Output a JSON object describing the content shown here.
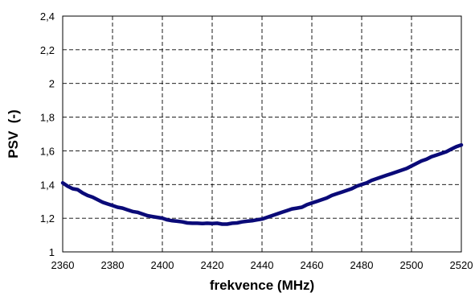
{
  "chart_data": {
    "type": "line",
    "title": "",
    "xlabel": "frekvence (MHz)",
    "ylabel": "PSV  (-)",
    "xlim": [
      2360,
      2520
    ],
    "ylim": [
      1,
      2.4
    ],
    "xticks": [
      2360,
      2380,
      2400,
      2420,
      2440,
      2460,
      2480,
      2500,
      2520
    ],
    "xtick_labels": [
      "2360",
      "2380",
      "2400",
      "2420",
      "2440",
      "2460",
      "2480",
      "2500",
      "2520"
    ],
    "yticks": [
      1,
      1.2,
      1.4,
      1.6,
      1.8,
      2,
      2.2,
      2.4
    ],
    "ytick_labels": [
      "1",
      "1,2",
      "1,4",
      "1,6",
      "1,8",
      "2",
      "2,2",
      "2,4"
    ],
    "grid": true,
    "legend": "none",
    "series": [
      {
        "color": "#0a0a78",
        "x": [
          2360,
          2362,
          2364,
          2366,
          2368,
          2370,
          2372,
          2374,
          2376,
          2378,
          2380,
          2382,
          2384,
          2386,
          2388,
          2390,
          2392,
          2394,
          2396,
          2398,
          2400,
          2402,
          2404,
          2406,
          2408,
          2410,
          2412,
          2414,
          2416,
          2418,
          2420,
          2422,
          2424,
          2426,
          2428,
          2430,
          2432,
          2434,
          2436,
          2438,
          2440,
          2442,
          2444,
          2446,
          2448,
          2450,
          2452,
          2454,
          2456,
          2458,
          2460,
          2462,
          2464,
          2466,
          2468,
          2470,
          2472,
          2474,
          2476,
          2478,
          2480,
          2482,
          2484,
          2486,
          2488,
          2490,
          2492,
          2494,
          2496,
          2498,
          2500,
          2502,
          2504,
          2506,
          2508,
          2510,
          2512,
          2514,
          2516,
          2518,
          2520
        ],
        "y": [
          1.41,
          1.39,
          1.375,
          1.37,
          1.35,
          1.335,
          1.325,
          1.31,
          1.295,
          1.285,
          1.275,
          1.265,
          1.26,
          1.25,
          1.24,
          1.235,
          1.225,
          1.215,
          1.21,
          1.205,
          1.2,
          1.19,
          1.185,
          1.182,
          1.178,
          1.172,
          1.17,
          1.17,
          1.168,
          1.17,
          1.168,
          1.17,
          1.165,
          1.165,
          1.17,
          1.172,
          1.178,
          1.182,
          1.185,
          1.19,
          1.195,
          1.205,
          1.215,
          1.225,
          1.235,
          1.245,
          1.255,
          1.26,
          1.265,
          1.28,
          1.29,
          1.3,
          1.31,
          1.32,
          1.335,
          1.345,
          1.355,
          1.365,
          1.375,
          1.39,
          1.4,
          1.41,
          1.425,
          1.435,
          1.445,
          1.455,
          1.465,
          1.475,
          1.485,
          1.495,
          1.51,
          1.525,
          1.54,
          1.55,
          1.565,
          1.575,
          1.585,
          1.595,
          1.61,
          1.625,
          1.635
        ]
      }
    ]
  }
}
